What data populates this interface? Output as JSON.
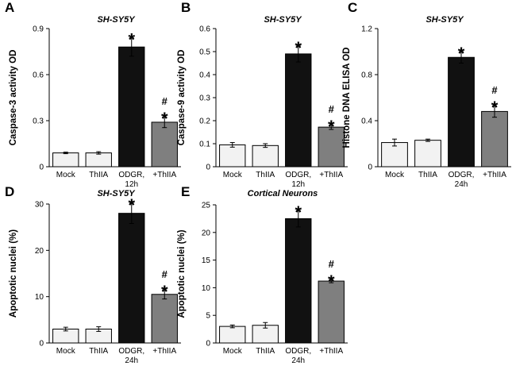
{
  "colors": {
    "mock": "#f2f2f2",
    "thiia": "#f2f2f2",
    "odgr": "#111111",
    "odgr_thiia": "#7f7f7f",
    "outline": "#000000"
  },
  "chart_data": [
    {
      "type": "bar",
      "panel": "A",
      "title": "SH-SY5Y",
      "ylabel": "Caspase-3 activity OD",
      "xlabel": "",
      "ylim": [
        0,
        0.9
      ],
      "yticks": [
        "0",
        "0.3",
        "0.6",
        "0.9"
      ],
      "categories": [
        [
          "Mock"
        ],
        [
          "ThIIA"
        ],
        [
          "ODGR,",
          "12h"
        ],
        [
          "+ThIIA"
        ]
      ],
      "values": [
        0.09,
        0.09,
        0.78,
        0.29
      ],
      "errors": [
        0.005,
        0.008,
        0.06,
        0.035
      ],
      "annotations": [
        [],
        [],
        [
          "*"
        ],
        [
          "#",
          "*"
        ]
      ]
    },
    {
      "type": "bar",
      "panel": "B",
      "title": "SH-SY5Y",
      "ylabel": "Caspase-9 activity OD",
      "xlabel": "",
      "ylim": [
        0,
        0.6
      ],
      "yticks": [
        "0",
        "0.1",
        "0.2",
        "0.3",
        "0.4",
        "0.5",
        "0.6"
      ],
      "categories": [
        [
          "Mock"
        ],
        [
          "ThIIA"
        ],
        [
          "ODGR,",
          "12h"
        ],
        [
          "+ThIIA"
        ]
      ],
      "values": [
        0.095,
        0.092,
        0.49,
        0.172
      ],
      "errors": [
        0.01,
        0.008,
        0.035,
        0.01
      ],
      "annotations": [
        [],
        [],
        [
          "*"
        ],
        [
          "#",
          "*"
        ]
      ]
    },
    {
      "type": "bar",
      "panel": "C",
      "title": "SH-SY5Y",
      "ylabel": "Histone DNA ELISA OD",
      "xlabel": "",
      "ylim": [
        0,
        1.2
      ],
      "yticks": [
        "0",
        "0.4",
        "0.8",
        "1.2"
      ],
      "categories": [
        [
          "Mock"
        ],
        [
          "ThIIA"
        ],
        [
          "ODGR,",
          "24h"
        ],
        [
          "+ThIIA"
        ]
      ],
      "values": [
        0.21,
        0.23,
        0.95,
        0.48
      ],
      "errors": [
        0.03,
        0.01,
        0.05,
        0.05
      ],
      "annotations": [
        [],
        [],
        [
          "*"
        ],
        [
          "#",
          "*"
        ]
      ]
    },
    {
      "type": "bar",
      "panel": "D",
      "title": "SH-SY5Y",
      "ylabel": "Apoptotic nuclei (%)",
      "xlabel": "",
      "ylim": [
        0,
        30
      ],
      "yticks": [
        "0",
        "10",
        "20",
        "30"
      ],
      "categories": [
        [
          "Mock"
        ],
        [
          "ThIIA"
        ],
        [
          "ODGR,",
          "24h"
        ],
        [
          "+ThIIA"
        ]
      ],
      "values": [
        3.0,
        3.0,
        28.0,
        10.5
      ],
      "errors": [
        0.4,
        0.5,
        2.2,
        1.0
      ],
      "annotations": [
        [],
        [],
        [
          "*"
        ],
        [
          "#",
          "*"
        ]
      ]
    },
    {
      "type": "bar",
      "panel": "E",
      "title": "Cortical Neurons",
      "ylabel": "Apoptotic nuclei (%)",
      "xlabel": "",
      "ylim": [
        0,
        25
      ],
      "yticks": [
        "0",
        "5",
        "10",
        "15",
        "20",
        "25"
      ],
      "categories": [
        [
          "Mock"
        ],
        [
          "ThIIA"
        ],
        [
          "ODGR,",
          "24h"
        ],
        [
          "+ThIIA"
        ]
      ],
      "values": [
        3.0,
        3.2,
        22.5,
        11.2
      ],
      "errors": [
        0.25,
        0.5,
        1.5,
        0.3
      ],
      "annotations": [
        [],
        [],
        [
          "*"
        ],
        [
          "#",
          "*"
        ]
      ]
    }
  ]
}
